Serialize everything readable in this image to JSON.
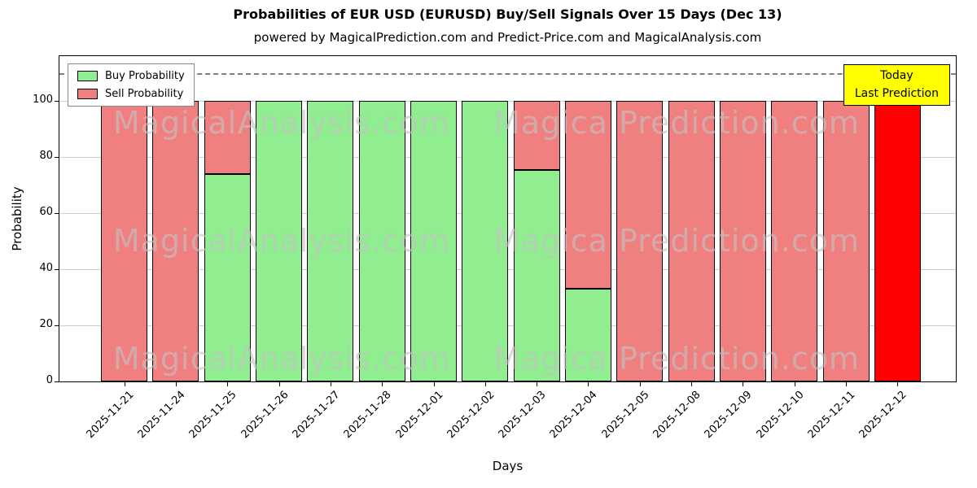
{
  "title": "Probabilities of EUR USD (EURUSD) Buy/Sell Signals Over 15 Days (Dec 13)",
  "subtitle": "powered by MagicalPrediction.com and Predict-Price.com and MagicalAnalysis.com",
  "chart_data": {
    "type": "bar",
    "stacked": true,
    "title": "Probabilities of EUR USD (EURUSD) Buy/Sell Signals Over 15 Days (Dec 13)",
    "xlabel": "Days",
    "ylabel": "Probability",
    "yticks": [
      0,
      20,
      40,
      60,
      80,
      100
    ],
    "ylim": [
      0,
      116
    ],
    "dashed_line_y": 110,
    "grid": true,
    "legend_position": "upper left",
    "categories": [
      "2025-11-21",
      "2025-11-24",
      "2025-11-25",
      "2025-11-26",
      "2025-11-27",
      "2025-11-28",
      "2025-12-01",
      "2025-12-02",
      "2025-12-03",
      "2025-12-04",
      "2025-12-05",
      "2025-12-08",
      "2025-12-09",
      "2025-12-10",
      "2025-12-11",
      "2025-12-12"
    ],
    "series": [
      {
        "name": "Buy Probability",
        "color": "#90ee90",
        "values": [
          0,
          0,
          74,
          100,
          100,
          100,
          100,
          100,
          75.5,
          33,
          0,
          0,
          0,
          0,
          0,
          0
        ]
      },
      {
        "name": "Sell Probability",
        "color": "#f08080",
        "values": [
          100,
          100,
          26,
          0,
          0,
          0,
          0,
          0,
          24.5,
          67,
          100,
          100,
          100,
          100,
          100,
          100
        ]
      }
    ],
    "highlight": {
      "index": 15,
      "color": "#ff0000",
      "label": [
        "Today",
        "Last Prediction"
      ]
    },
    "watermarks": [
      "MagicalAnalysis.com",
      "Magica Prediction.com"
    ]
  }
}
